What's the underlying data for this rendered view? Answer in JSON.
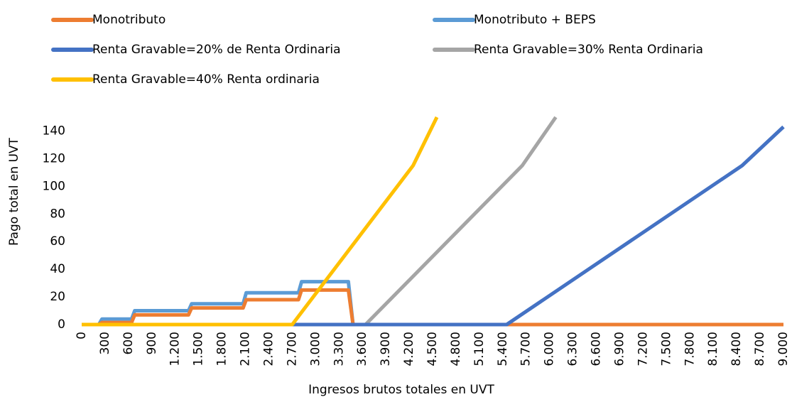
{
  "chart_data": {
    "type": "line",
    "xlabel": "Ingresos brutos totales en UVT",
    "ylabel": "Pago total en UVT",
    "xlim": [
      0,
      9000
    ],
    "ylim": [
      0,
      150
    ],
    "xticks": [
      0,
      300,
      600,
      900,
      {
        "value": 1200,
        "label": "1.200"
      },
      {
        "value": 1500,
        "label": "1.500"
      },
      {
        "value": 1800,
        "label": "1.800"
      },
      {
        "value": 2100,
        "label": "2.100"
      },
      {
        "value": 2400,
        "label": "2.400"
      },
      {
        "value": 2700,
        "label": "2.700"
      },
      {
        "value": 3000,
        "label": "3.000"
      },
      {
        "value": 3300,
        "label": "3.300"
      },
      {
        "value": 3600,
        "label": "3.600"
      },
      {
        "value": 3900,
        "label": "3.900"
      },
      {
        "value": 4200,
        "label": "4.200"
      },
      {
        "value": 4500,
        "label": "4.500"
      },
      {
        "value": 4800,
        "label": "4.800"
      },
      {
        "value": 5100,
        "label": "5.100"
      },
      {
        "value": 5400,
        "label": "5.400"
      },
      {
        "value": 5700,
        "label": "5.700"
      },
      {
        "value": 6000,
        "label": "6.000"
      },
      {
        "value": 6300,
        "label": "6.300"
      },
      {
        "value": 6600,
        "label": "6.600"
      },
      {
        "value": 6900,
        "label": "6.900"
      },
      {
        "value": 7200,
        "label": "7.200"
      },
      {
        "value": 7500,
        "label": "7.500"
      },
      {
        "value": 7800,
        "label": "7.800"
      },
      {
        "value": 8100,
        "label": "8.100"
      },
      {
        "value": 8400,
        "label": "8.400"
      },
      {
        "value": 8700,
        "label": "8.700"
      },
      {
        "value": 9000,
        "label": "9.000"
      }
    ],
    "yticks": [
      0,
      20,
      40,
      60,
      80,
      100,
      120,
      140
    ],
    "series": [
      {
        "name": "Monotributo",
        "color": "#ed7d31",
        "x": [
          0,
          220,
          260,
          640,
          680,
          1370,
          1410,
          2070,
          2110,
          2780,
          2820,
          3420,
          3480,
          9000
        ],
        "values": [
          0,
          0,
          1.5,
          1.5,
          7,
          7,
          12,
          12,
          18,
          18,
          25,
          25,
          0,
          0
        ]
      },
      {
        "name": "Monotributo +  BEPS",
        "color": "#5b9bd5",
        "x": [
          0,
          220,
          260,
          640,
          680,
          1370,
          1410,
          2070,
          2110,
          2780,
          2820,
          3420,
          3480,
          9000
        ],
        "values": [
          0,
          0,
          4,
          4,
          10,
          10,
          15,
          15,
          23,
          23,
          31,
          31,
          0,
          0
        ]
      },
      {
        "name": "Renta Gravable=20% de Renta Ordinaria",
        "color": "#4472c4",
        "x": [
          0,
          5450,
          8470,
          9000
        ],
        "values": [
          0,
          0,
          115,
          143
        ]
      },
      {
        "name": "Renta Gravable=30% Renta Ordinaria",
        "color": "#a5a5a5",
        "x": [
          0,
          3640,
          5650,
          6080
        ],
        "values": [
          0,
          0,
          115,
          150
        ]
      },
      {
        "name": "Renta Gravable=40% Renta ordinaria",
        "color": "#ffc000",
        "x": [
          0,
          2700,
          4250,
          4555
        ],
        "values": [
          0,
          0,
          115,
          150
        ]
      }
    ]
  }
}
